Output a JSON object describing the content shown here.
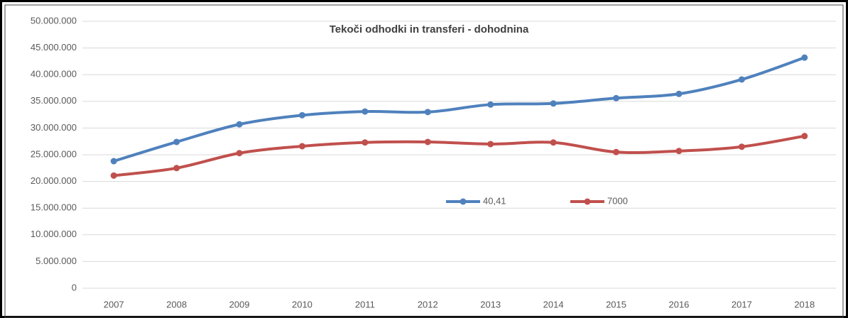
{
  "chart_data": {
    "type": "line",
    "title": "Tekoči odhodki in transferi - dohodnina",
    "categories": [
      "2007",
      "2008",
      "2009",
      "2010",
      "2011",
      "2012",
      "2013",
      "2014",
      "2015",
      "2016",
      "2017",
      "2018"
    ],
    "series": [
      {
        "name": "40,41",
        "color": "#4f81bd",
        "values": [
          23800000,
          27400000,
          30700000,
          32400000,
          33100000,
          33000000,
          34400000,
          34600000,
          35600000,
          36400000,
          39100000,
          43200000
        ]
      },
      {
        "name": "7000",
        "color": "#c0504d",
        "values": [
          21100000,
          22500000,
          25300000,
          26600000,
          27300000,
          27400000,
          27000000,
          27300000,
          25500000,
          25700000,
          26500000,
          28500000
        ]
      }
    ],
    "ylim": [
      0,
      50000000
    ],
    "yticks": [
      0,
      {
        "value": 5000000,
        "label": "5.000.000"
      },
      {
        "value": 10000000,
        "label": "10.000.000"
      },
      {
        "value": 15000000,
        "label": "15.000.000"
      },
      {
        "value": 20000000,
        "label": "20.000.000"
      },
      {
        "value": 25000000,
        "label": "25.000.000"
      },
      {
        "value": 30000000,
        "label": "30.000.000"
      },
      {
        "value": 35000000,
        "label": "35.000.000"
      },
      {
        "value": 40000000,
        "label": "40.000.000"
      },
      {
        "value": 45000000,
        "label": "45.000.000"
      },
      {
        "value": 50000000,
        "label": "50.000.000"
      }
    ],
    "grid": true,
    "legend": "center"
  }
}
